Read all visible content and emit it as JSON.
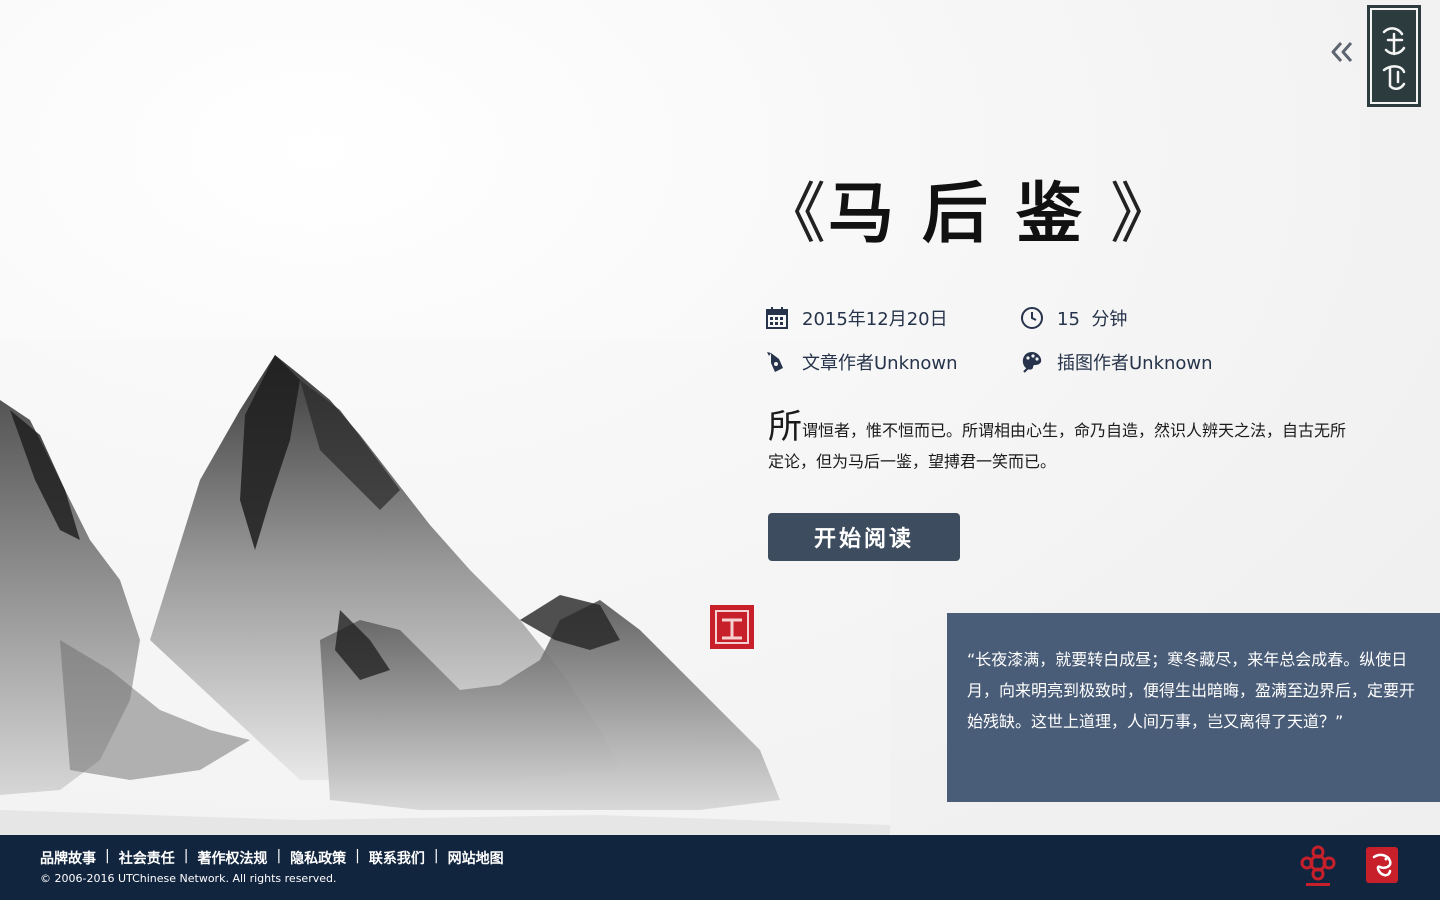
{
  "header": {
    "collapse_icon": "double-chevron-left-icon"
  },
  "article": {
    "title_open": "《",
    "title": "马后鉴",
    "title_close": "》",
    "date": "2015年12月20日",
    "read_time": "15  分钟",
    "author": "文章作者Unknown",
    "illustrator": "插图作者Unknown",
    "summary_dropcap": "所",
    "summary_rest": "谓恒者，惟不恒而已。所谓相由心生，命乃自造，然识人辨天之法，自古无所定论，但为马后一鉴，望搏君一笑而已。",
    "start_button": "开始阅读"
  },
  "quote": {
    "text": "“长夜漆满，就要转白成昼；寒冬藏尽，来年总会成春。纵使日月，向来明亮到极致时，便得生出暗晦，盈满至边界后，定要开始残缺。这世上道理，人间万事，岂又离得了天道？”"
  },
  "footer": {
    "links": [
      "品牌故事",
      "社会责任",
      "著作权法规",
      "隐私政策",
      "联系我们",
      "网站地图"
    ],
    "separator": "|",
    "copyright": "© 2006-2016 UTChinese Network. All rights reserved."
  },
  "colors": {
    "accent": "#3d4c5e",
    "quote_bg": "#4a5d78",
    "footer_bg": "#12253f",
    "seal_red": "#c8202a"
  }
}
